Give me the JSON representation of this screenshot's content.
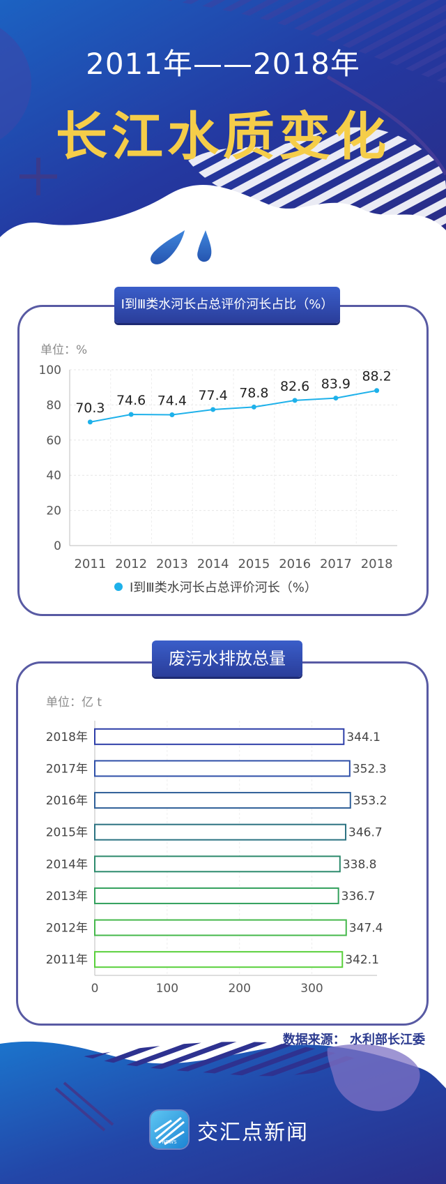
{
  "header": {
    "title_line1": "2011年——2018年",
    "title_line2": "长江水质变化"
  },
  "charts": {
    "line": {
      "panel_title": "Ⅰ到Ⅲ类水河长占总评价河长占比（%）",
      "unit": "单位：%",
      "legend": "Ⅰ到Ⅲ类水河长占总评价河长（%）"
    },
    "bar": {
      "panel_title": "废污水排放总量",
      "unit": "单位：亿 t"
    }
  },
  "chart_data": [
    {
      "type": "line",
      "title": "Ⅰ到Ⅲ类水河长占总评价河长占比（%）",
      "categories": [
        "2011",
        "2012",
        "2013",
        "2014",
        "2015",
        "2016",
        "2017",
        "2018"
      ],
      "series": [
        {
          "name": "Ⅰ到Ⅲ类水河长占总评价河长（%）",
          "values": [
            70.3,
            74.6,
            74.4,
            77.4,
            78.8,
            82.6,
            83.9,
            88.2
          ]
        }
      ],
      "ylim": [
        0,
        100
      ],
      "yticks": [
        0,
        20,
        40,
        60,
        80,
        100
      ],
      "grid": true,
      "legend_position": "bottom",
      "color": "#1eb1ea"
    },
    {
      "type": "bar",
      "orientation": "horizontal",
      "title": "废污水排放总量",
      "categories": [
        "2018年",
        "2017年",
        "2016年",
        "2015年",
        "2014年",
        "2013年",
        "2012年",
        "2011年"
      ],
      "values": [
        344.1,
        352.3,
        353.2,
        346.7,
        338.8,
        336.7,
        347.4,
        342.1
      ],
      "xlim": [
        0,
        390
      ],
      "xticks": [
        0,
        100,
        200,
        300
      ],
      "grid": true,
      "colors": [
        "#2d3ea8",
        "#2e4fa8",
        "#2f5f98",
        "#2b7281",
        "#2c8a6c",
        "#32a05c",
        "#45b84b",
        "#58d03a"
      ]
    }
  ],
  "source": "数据来源：  水利部长江委",
  "footer": {
    "brand": "交汇点新闻",
    "logo_text": "NEWS"
  },
  "colors": {
    "navy": "#272f8c",
    "blue": "#1565c0",
    "gold": "#f5cd49",
    "frame": "#585aa3"
  }
}
